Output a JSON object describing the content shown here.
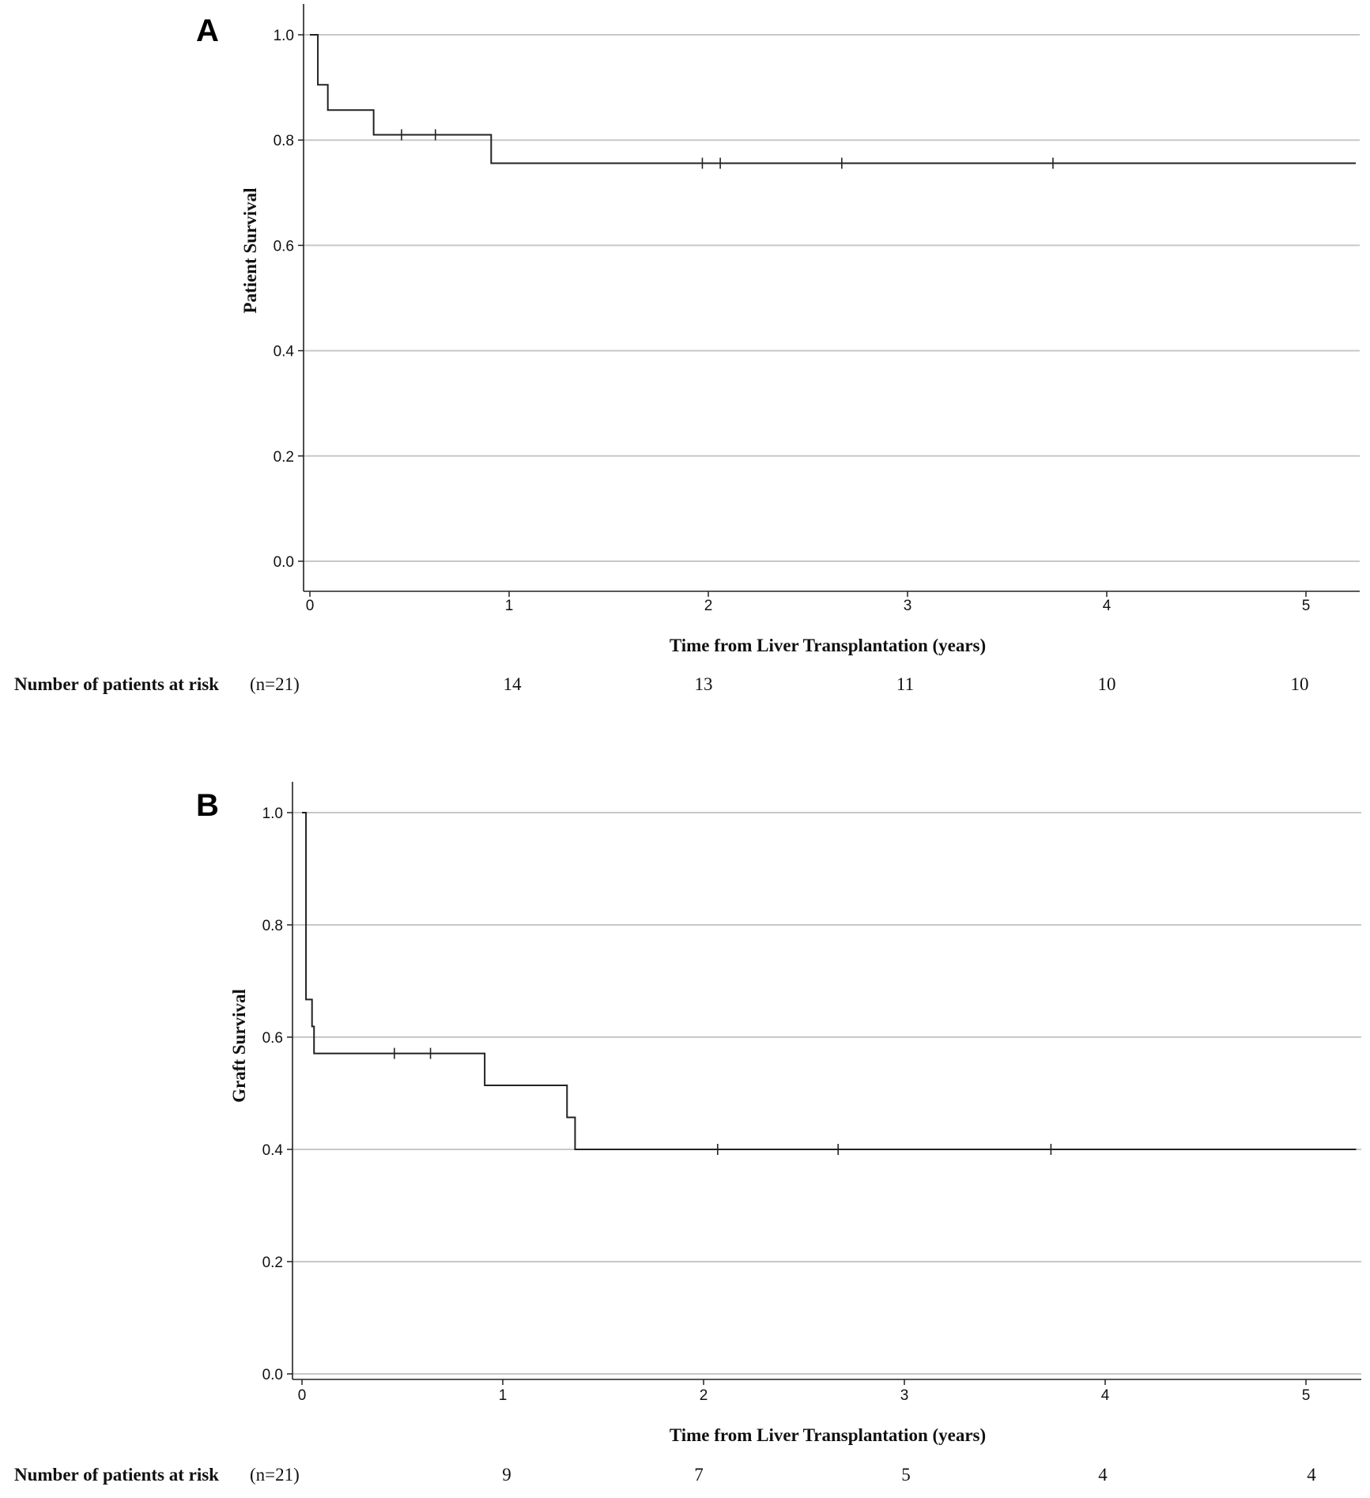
{
  "chart_data": [
    {
      "type": "line",
      "panel": "A",
      "title": "",
      "xlabel": "Time from Liver Transplantation (years)",
      "ylabel": "Patient Survival",
      "xlim": [
        0,
        5.25
      ],
      "ylim": [
        0,
        1.0
      ],
      "x_ticks": [
        "0",
        "1",
        "2",
        "3",
        "4",
        "5"
      ],
      "y_ticks": [
        "0.0",
        "0.2",
        "0.4",
        "0.6",
        "0.8",
        "1.0"
      ],
      "grid": "horizontal",
      "legend": "none",
      "series": [
        {
          "steps": [
            {
              "x": 0,
              "y": 1.0
            },
            {
              "x": 0.04,
              "y": 0.905
            },
            {
              "x": 0.09,
              "y": 0.857
            },
            {
              "x": 0.32,
              "y": 0.81
            },
            {
              "x": 0.91,
              "y": 0.756
            }
          ],
          "end_x": 5.25,
          "censored": [
            {
              "x": 0.46,
              "y": 0.81
            },
            {
              "x": 0.63,
              "y": 0.81
            },
            {
              "x": 1.97,
              "y": 0.756
            },
            {
              "x": 2.06,
              "y": 0.756
            },
            {
              "x": 2.67,
              "y": 0.756
            },
            {
              "x": 3.73,
              "y": 0.756
            }
          ]
        }
      ],
      "risk_table": {
        "label": "Number of patients at risk",
        "n_label": "(n=21)",
        "at_x": [
          1,
          2,
          3,
          4,
          5
        ],
        "values": [
          "14",
          "13",
          "11",
          "10",
          "10"
        ]
      }
    },
    {
      "type": "line",
      "panel": "B",
      "title": "",
      "xlabel": "Time from Liver Transplantation (years)",
      "ylabel": "Graft Survival",
      "xlim": [
        0,
        5.25
      ],
      "ylim": [
        0,
        1.0
      ],
      "x_ticks": [
        "0",
        "1",
        "2",
        "3",
        "4",
        "5"
      ],
      "y_ticks": [
        "0.0",
        "0.2",
        "0.4",
        "0.6",
        "0.8",
        "1.0"
      ],
      "grid": "horizontal",
      "legend": "none",
      "series": [
        {
          "steps": [
            {
              "x": 0,
              "y": 1.0
            },
            {
              "x": 0.02,
              "y": 0.667
            },
            {
              "x": 0.05,
              "y": 0.619
            },
            {
              "x": 0.06,
              "y": 0.571
            },
            {
              "x": 0.91,
              "y": 0.514
            },
            {
              "x": 1.32,
              "y": 0.457
            },
            {
              "x": 1.36,
              "y": 0.4
            }
          ],
          "end_x": 5.25,
          "censored": [
            {
              "x": 0.46,
              "y": 0.571
            },
            {
              "x": 0.64,
              "y": 0.571
            },
            {
              "x": 2.07,
              "y": 0.4
            },
            {
              "x": 2.67,
              "y": 0.4
            },
            {
              "x": 3.73,
              "y": 0.4
            }
          ]
        }
      ],
      "risk_table": {
        "label": "Number of patients at risk",
        "n_label": "(n=21)",
        "at_x": [
          1,
          2,
          3,
          4,
          5
        ],
        "values": [
          "9",
          "7",
          "5",
          "4",
          "4"
        ]
      }
    }
  ]
}
